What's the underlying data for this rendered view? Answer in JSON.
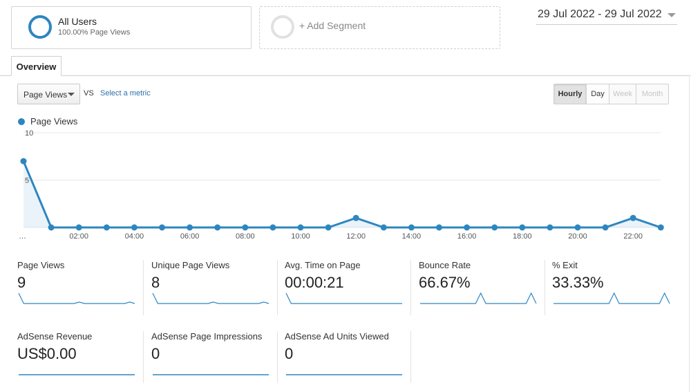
{
  "segments": {
    "primary": {
      "title": "All Users",
      "subtitle": "100.00% Page Views"
    },
    "add_label": "+ Add Segment"
  },
  "date_range": "29 Jul 2022 - 29 Jul 2022",
  "tabs": {
    "overview": "Overview"
  },
  "controls": {
    "metric": "Page Views",
    "vs": "VS",
    "select_metric": "Select a metric",
    "granularity": [
      "Hourly",
      "Day",
      "Week",
      "Month"
    ],
    "active": "Hourly",
    "disabled": [
      "Week",
      "Month"
    ]
  },
  "legend": {
    "label": "Page Views",
    "color": "#2d86c0"
  },
  "chart_data": {
    "type": "area",
    "title": "",
    "xlabel": "",
    "ylabel": "",
    "x": [
      "00:00",
      "01:00",
      "02:00",
      "03:00",
      "04:00",
      "05:00",
      "06:00",
      "07:00",
      "08:00",
      "09:00",
      "10:00",
      "11:00",
      "12:00",
      "13:00",
      "14:00",
      "15:00",
      "16:00",
      "17:00",
      "18:00",
      "19:00",
      "20:00",
      "21:00",
      "22:00",
      "23:00"
    ],
    "series": [
      {
        "name": "Page Views",
        "values": [
          7,
          0,
          0,
          0,
          0,
          0,
          0,
          0,
          0,
          0,
          0,
          0,
          1,
          0,
          0,
          0,
          0,
          0,
          0,
          0,
          0,
          0,
          1,
          0
        ]
      }
    ],
    "x_tick_labels": [
      "…",
      "02:00",
      "04:00",
      "06:00",
      "08:00",
      "10:00",
      "12:00",
      "14:00",
      "16:00",
      "18:00",
      "20:00",
      "22:00"
    ],
    "y_tick_labels": [
      "5",
      "10"
    ],
    "ylim": [
      0,
      10
    ],
    "grid": true,
    "color": "#2d86c0"
  },
  "scorecards": [
    {
      "label": "Page Views",
      "value": "9",
      "spark": [
        7,
        0,
        0,
        0,
        0,
        0,
        0,
        0,
        0,
        0,
        0,
        0,
        1,
        0,
        0,
        0,
        0,
        0,
        0,
        0,
        0,
        0,
        1,
        0
      ]
    },
    {
      "label": "Unique Page Views",
      "value": "8",
      "spark": [
        7,
        0,
        0,
        0,
        0,
        0,
        0,
        0,
        0,
        0,
        0,
        0,
        1,
        0,
        0,
        0,
        0,
        0,
        0,
        0,
        0,
        0,
        1,
        0
      ]
    },
    {
      "label": "Avg. Time on Page",
      "value": "00:00:21",
      "spark": [
        1,
        0,
        0,
        0,
        0,
        0,
        0,
        0,
        0,
        0,
        0,
        0,
        0,
        0,
        0,
        0,
        0,
        0,
        0,
        0,
        0,
        0,
        0,
        0
      ]
    },
    {
      "label": "Bounce Rate",
      "value": "66.67%",
      "spark": [
        0,
        0,
        0,
        0,
        0,
        0,
        0,
        0,
        0,
        0,
        0,
        0,
        1,
        0,
        0,
        0,
        0,
        0,
        0,
        0,
        0,
        0,
        1,
        0
      ]
    },
    {
      "label": "% Exit",
      "value": "33.33%",
      "spark": [
        0,
        0,
        0,
        0,
        0,
        0,
        0,
        0,
        0,
        0,
        0,
        0,
        1,
        0,
        0,
        0,
        0,
        0,
        0,
        0,
        0,
        0,
        1,
        0
      ]
    },
    {
      "label": "AdSense Revenue",
      "value": "US$0.00",
      "spark": [
        0,
        0,
        0,
        0,
        0,
        0,
        0,
        0,
        0,
        0,
        0,
        0,
        0,
        0,
        0,
        0,
        0,
        0,
        0,
        0,
        0,
        0,
        0,
        0
      ]
    },
    {
      "label": "AdSense Page Impressions",
      "value": "0",
      "spark": [
        0,
        0,
        0,
        0,
        0,
        0,
        0,
        0,
        0,
        0,
        0,
        0,
        0,
        0,
        0,
        0,
        0,
        0,
        0,
        0,
        0,
        0,
        0,
        0
      ]
    },
    {
      "label": "AdSense Ad Units Viewed",
      "value": "0",
      "spark": [
        0,
        0,
        0,
        0,
        0,
        0,
        0,
        0,
        0,
        0,
        0,
        0,
        0,
        0,
        0,
        0,
        0,
        0,
        0,
        0,
        0,
        0,
        0,
        0
      ]
    }
  ]
}
